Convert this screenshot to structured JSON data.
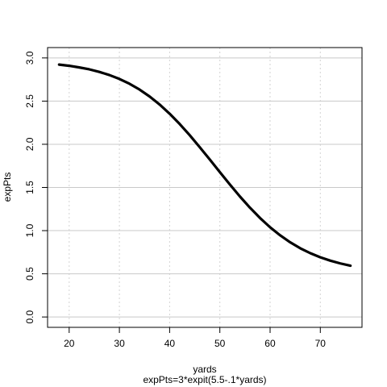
{
  "chart_data": {
    "type": "line",
    "title": "",
    "xlabel": "yards",
    "ylabel": "expPts",
    "subtitle": "expPts=3*expit(5.5-.1*yards)",
    "xlim": [
      15.7,
      78.3
    ],
    "ylim": [
      -0.12,
      3.12
    ],
    "x_ticks": [
      20,
      30,
      40,
      50,
      60,
      70
    ],
    "y_ticks": [
      0.0,
      0.5,
      1.0,
      1.5,
      2.0,
      2.5,
      3.0
    ],
    "y_tick_labels": [
      "0.0",
      "0.5",
      "1.0",
      "1.5",
      "2.0",
      "2.5",
      "3.0"
    ],
    "grid": {
      "vertical": "dotted",
      "horizontal": "solid"
    },
    "series": [
      {
        "x": [
          18,
          20,
          22,
          24,
          26,
          28,
          30,
          32,
          34,
          36,
          38,
          40,
          42,
          44,
          46,
          48,
          50,
          52,
          54,
          56,
          58,
          60,
          62,
          64,
          66,
          68,
          70,
          72,
          74,
          76
        ],
        "values": [
          2.923,
          2.909,
          2.89,
          2.868,
          2.838,
          2.802,
          2.757,
          2.701,
          2.634,
          2.554,
          2.461,
          2.354,
          2.235,
          2.105,
          1.966,
          1.823,
          1.677,
          1.534,
          1.395,
          1.265,
          1.146,
          1.039,
          0.946,
          0.865,
          0.796,
          0.739,
          0.691,
          0.652,
          0.62,
          0.594
        ]
      }
    ],
    "line_color": "#000000"
  }
}
